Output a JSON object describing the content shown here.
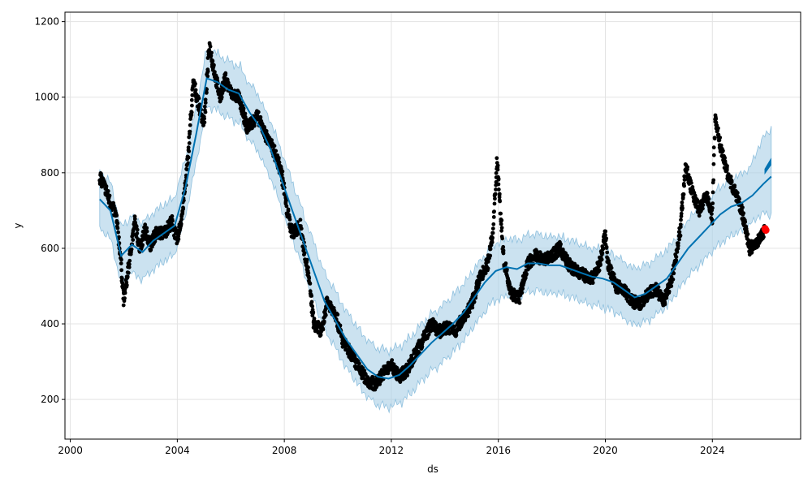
{
  "chart_data": {
    "type": "line",
    "title": "",
    "xlabel": "ds",
    "ylabel": "y",
    "xlim": [
      1999.8,
      2027.3
    ],
    "ylim": [
      95,
      1225
    ],
    "x_ticks": [
      2000,
      2004,
      2008,
      2012,
      2016,
      2020,
      2024
    ],
    "x_tick_labels": [
      "2000",
      "2004",
      "2008",
      "2012",
      "2016",
      "2020",
      "2024"
    ],
    "y_ticks": [
      200,
      400,
      600,
      800,
      1000,
      1200
    ],
    "y_tick_labels": [
      "200",
      "400",
      "600",
      "800",
      "1000",
      "1200"
    ],
    "grid": true,
    "colors": {
      "observed": "#000000",
      "forecast": "#0072B2",
      "interval": "#a8cfe6",
      "highlight": "#ff0000"
    },
    "series": [
      {
        "kind": "observed",
        "x": [
          2001.1,
          2001.3,
          2001.5,
          2001.7,
          2001.85,
          2002.0,
          2002.2,
          2002.4,
          2002.6,
          2002.8,
          2003.0,
          2003.2,
          2003.5,
          2003.8,
          2004.0,
          2004.2,
          2004.4,
          2004.6,
          2004.8,
          2005.0,
          2005.2,
          2005.4,
          2005.6,
          2005.8,
          2006.0,
          2006.3,
          2006.6,
          2007.0,
          2007.3,
          2007.6,
          2007.9,
          2008.1,
          2008.3,
          2008.6,
          2008.9,
          2009.1,
          2009.4,
          2009.6,
          2009.9,
          2010.2,
          2010.5,
          2010.8,
          2011.1,
          2011.4,
          2011.7,
          2012.0,
          2012.3,
          2012.6,
          2012.9,
          2013.2,
          2013.5,
          2013.8,
          2014.1,
          2014.4,
          2014.7,
          2015.0,
          2015.3,
          2015.6,
          2015.8,
          2015.95,
          2016.2,
          2016.5,
          2016.8,
          2017.1,
          2017.4,
          2017.7,
          2018.0,
          2018.3,
          2018.6,
          2018.9,
          2019.2,
          2019.5,
          2019.8,
          2020.0,
          2020.1,
          2020.4,
          2020.7,
          2021.0,
          2021.3,
          2021.6,
          2021.9,
          2022.2,
          2022.5,
          2022.8,
          2023.0,
          2023.2,
          2023.5,
          2023.8,
          2024.0,
          2024.1,
          2024.3,
          2024.6,
          2024.9,
          2025.1,
          2025.4,
          2025.7,
          2025.95
        ],
        "y": [
          790,
          760,
          720,
          690,
          600,
          460,
          560,
          670,
          600,
          650,
          610,
          640,
          640,
          670,
          620,
          700,
          840,
          1040,
          980,
          930,
          1140,
          1060,
          1000,
          1050,
          1010,
          1000,
          920,
          950,
          900,
          860,
          800,
          700,
          640,
          660,
          530,
          400,
          380,
          460,
          430,
          350,
          320,
          280,
          250,
          240,
          270,
          290,
          260,
          280,
          320,
          360,
          400,
          380,
          390,
          380,
          420,
          450,
          520,
          560,
          640,
          840,
          570,
          480,
          470,
          560,
          580,
          570,
          580,
          600,
          560,
          540,
          530,
          520,
          560,
          640,
          560,
          500,
          490,
          460,
          450,
          480,
          490,
          460,
          520,
          650,
          820,
          760,
          700,
          740,
          680,
          950,
          870,
          790,
          740,
          700,
          600,
          620,
          650
        ]
      },
      {
        "kind": "trend",
        "x": [
          2001.1,
          2001.5,
          2001.9,
          2002.3,
          2002.7,
          2003.1,
          2003.5,
          2003.9,
          2004.3,
          2004.7,
          2005.1,
          2005.5,
          2005.9,
          2006.3,
          2006.7,
          2007.1,
          2007.5,
          2007.9,
          2008.3,
          2008.7,
          2009.1,
          2009.5,
          2009.9,
          2010.3,
          2010.7,
          2011.1,
          2011.5,
          2011.9,
          2012.3,
          2012.7,
          2013.1,
          2013.5,
          2013.9,
          2014.3,
          2014.7,
          2015.1,
          2015.5,
          2015.9,
          2016.3,
          2016.7,
          2017.1,
          2017.5,
          2017.9,
          2018.3,
          2018.7,
          2019.1,
          2019.5,
          2019.9,
          2020.3,
          2020.7,
          2021.1,
          2021.5,
          2021.9,
          2022.3,
          2022.7,
          2023.1,
          2023.5,
          2023.9,
          2024.3,
          2024.7,
          2025.1,
          2025.5,
          2025.9,
          2026.2
        ],
        "y": [
          730,
          700,
          580,
          610,
          590,
          620,
          640,
          660,
          760,
          900,
          1050,
          1040,
          1020,
          1010,
          960,
          920,
          860,
          780,
          700,
          620,
          540,
          460,
          410,
          360,
          320,
          280,
          260,
          255,
          265,
          290,
          320,
          350,
          375,
          400,
          430,
          470,
          510,
          540,
          550,
          545,
          560,
          560,
          555,
          555,
          545,
          535,
          525,
          520,
          510,
          490,
          470,
          480,
          500,
          520,
          560,
          600,
          630,
          660,
          690,
          710,
          720,
          740,
          770,
          790
        ]
      }
    ],
    "interval": {
      "half_width": 75,
      "x_end": 2026.2,
      "end_upper": 920,
      "end_lower": 690
    },
    "forecast_band": {
      "x_start": 2025.95,
      "x_end": 2026.2,
      "y_low": [
        795,
        820
      ],
      "y_high": [
        810,
        840
      ]
    },
    "highlight_points": [
      {
        "x": 2025.97,
        "y": 652
      },
      {
        "x": 2026.0,
        "y": 648
      }
    ]
  }
}
